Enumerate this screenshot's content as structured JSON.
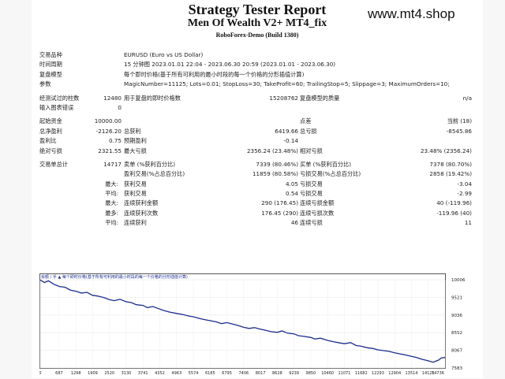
{
  "header": {
    "title": "Strategy Tester Report",
    "ea_name": "Men Of Wealth V2+ MT4_fix",
    "server": "RoboForex-Demo (Build 1380)",
    "watermark": "www.mt4.shop"
  },
  "info": [
    {
      "label": "交易品种",
      "value": "EURUSD (Euro vs US Dollar)"
    },
    {
      "label": "时间周期",
      "value": "15 分钟图 2023.01.01 22:04 - 2023.06.30 20:59 (2023.01.01 - 2023.06.30)"
    },
    {
      "label": "复盘模型",
      "value": "每个即时价格(基于所有可利用的最小时段的每一个价格的分形插值计算)"
    },
    {
      "label": "参数",
      "value": "MagicNumber=11125; Lots=0.01; StopLoss=30; TakeProfit=60; TrailingStop=5; Slippage=3; MaximumOrders=10;"
    }
  ],
  "test_stats": {
    "bars_label": "经测试过的柱数",
    "bars_value": "12480",
    "ticks_label": "用于复盘的即时价格数",
    "ticks_value": "15208762",
    "quality_label": "复盘模型的质量",
    "quality_value": "n/a",
    "errors_label": "输入图表错误",
    "errors_value": "0"
  },
  "money": {
    "deposit_label": "起始资金",
    "deposit_value": "10000.00",
    "spread_label": "点差",
    "spread_value": "当前 (18)",
    "netprofit_label": "总净盈利",
    "netprofit_value": "-2126.20",
    "grossprofit_label": "总获利",
    "grossprofit_value": "6419.66",
    "grossloss_label": "总亏损",
    "grossloss_value": "-8545.86",
    "pf_label": "盈利比",
    "pf_value": "0.75",
    "expected_label": "预期盈利",
    "expected_value": "-0.14",
    "absdd_label": "绝对亏损",
    "absdd_value": "2321.55",
    "maxdd_label": "最大亏损",
    "maxdd_value": "2356.24 (23.48%)",
    "reldd_label": "相对亏损",
    "reldd_value": "23.48% (2356.24)"
  },
  "trades": {
    "total_label": "交易单总计",
    "total_value": "14717",
    "short_label": "卖单 (%获利百分比)",
    "short_value": "7339 (80.46%)",
    "long_label": "买单 (%获利百分比)",
    "long_value": "7378 (80.70%)",
    "profit_label": "盈利交易(%占总百分比)",
    "profit_value": "11859 (80.58%)",
    "loss_label": "亏损交易(%占总百分比)",
    "loss_value": "2858 (19.42%)",
    "largest_label": "最大:",
    "largest_profit_label": "获利交易",
    "largest_profit_value": "4.05",
    "largest_loss_label": "亏损交易",
    "largest_loss_value": "-3.04",
    "average_label": "平均:",
    "average_profit_label": "获利交易",
    "average_profit_value": "0.54",
    "average_loss_label": "亏损交易",
    "average_loss_value": "-2.99",
    "maxcons_label": "最大:",
    "maxcons_wins_label": "连续获利金额",
    "maxcons_wins_value": "290 (176.45)",
    "maxcons_losses_label": "连续亏损金额",
    "maxcons_losses_value": "40 (-119.96)",
    "maxamt_label": "最多:",
    "maxamt_profit_label": "连续获利次数",
    "maxamt_profit_value": "176.45 (290)",
    "maxamt_loss_label": "连续亏损次数",
    "maxamt_loss_value": "-119.96 (40)",
    "avgcons_label": "平均:",
    "avgcons_wins_label": "连续获利",
    "avgcons_wins_value": "46",
    "avgcons_losses_label": "连续亏损",
    "avgcons_losses_value": "11"
  },
  "chart_data": {
    "type": "line",
    "legend": "余额 / 手 ▲ 每个即时价格(基于所有可利用的最小时段的每一个价格的分形插值计算)",
    "x_ticks": [
      "0",
      "687",
      "1298",
      "1909",
      "2520",
      "3130",
      "3741",
      "4352",
      "4963",
      "5574",
      "6185",
      "6795",
      "7406",
      "8017",
      "8628",
      "9239",
      "9850",
      "10460",
      "11071",
      "11682",
      "12293",
      "12904",
      "13514",
      "14125",
      "14736"
    ],
    "y_ticks": [
      "10006",
      "9521",
      "9036",
      "8552",
      "8067",
      "7583"
    ],
    "ylim": [
      7583,
      10006
    ],
    "xlim": [
      0,
      14736
    ],
    "series": [
      {
        "color": "#1b2c8f",
        "points": [
          [
            0,
            10000
          ],
          [
            150,
            9930
          ],
          [
            300,
            9975
          ],
          [
            500,
            9880
          ],
          [
            700,
            9820
          ],
          [
            900,
            9800
          ],
          [
            1100,
            9720
          ],
          [
            1300,
            9690
          ],
          [
            1500,
            9640
          ],
          [
            1700,
            9660
          ],
          [
            1900,
            9580
          ],
          [
            2100,
            9555
          ],
          [
            2300,
            9520
          ],
          [
            2520,
            9460
          ],
          [
            2700,
            9430
          ],
          [
            2900,
            9470
          ],
          [
            3130,
            9400
          ],
          [
            3300,
            9380
          ],
          [
            3500,
            9320
          ],
          [
            3741,
            9300
          ],
          [
            3900,
            9240
          ],
          [
            4100,
            9270
          ],
          [
            4352,
            9200
          ],
          [
            4500,
            9160
          ],
          [
            4700,
            9120
          ],
          [
            4963,
            9080
          ],
          [
            5200,
            9050
          ],
          [
            5400,
            9010
          ],
          [
            5574,
            8990
          ],
          [
            5800,
            8940
          ],
          [
            6000,
            8910
          ],
          [
            6185,
            8880
          ],
          [
            6400,
            8850
          ],
          [
            6600,
            8800
          ],
          [
            6795,
            8830
          ],
          [
            7000,
            8790
          ],
          [
            7200,
            8750
          ],
          [
            7406,
            8700
          ],
          [
            7600,
            8670
          ],
          [
            7800,
            8690
          ],
          [
            8017,
            8650
          ],
          [
            8200,
            8620
          ],
          [
            8400,
            8580
          ],
          [
            8628,
            8560
          ],
          [
            8800,
            8600
          ],
          [
            9000,
            8540
          ],
          [
            9239,
            8520
          ],
          [
            9400,
            8470
          ],
          [
            9600,
            8450
          ],
          [
            9850,
            8420
          ],
          [
            10000,
            8380
          ],
          [
            10200,
            8400
          ],
          [
            10460,
            8340
          ],
          [
            10700,
            8300
          ],
          [
            10900,
            8270
          ],
          [
            11071,
            8250
          ],
          [
            11300,
            8280
          ],
          [
            11500,
            8200
          ],
          [
            11682,
            8180
          ],
          [
            11900,
            8140
          ],
          [
            12100,
            8120
          ],
          [
            12293,
            8080
          ],
          [
            12500,
            8060
          ],
          [
            12700,
            8040
          ],
          [
            12904,
            8000
          ],
          [
            13100,
            7970
          ],
          [
            13300,
            7940
          ],
          [
            13514,
            7900
          ],
          [
            13700,
            7870
          ],
          [
            13900,
            7820
          ],
          [
            14125,
            7780
          ],
          [
            14300,
            7740
          ],
          [
            14500,
            7800
          ],
          [
            14600,
            7860
          ],
          [
            14736,
            7870
          ]
        ]
      }
    ]
  }
}
